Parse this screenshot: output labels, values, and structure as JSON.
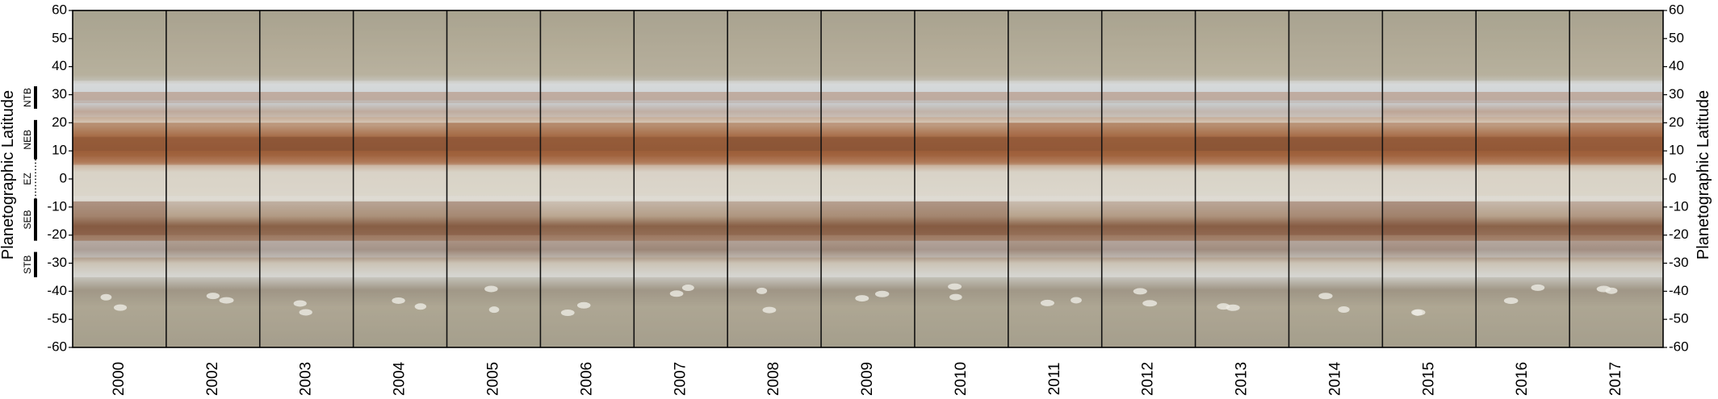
{
  "left_axis_title": "Planetographic Latitude",
  "right_axis_title": "Planetographic Latitude",
  "latitude_range": [
    -60,
    60
  ],
  "latitude_ticks": [
    60,
    50,
    40,
    30,
    20,
    10,
    0,
    -10,
    -20,
    -30,
    -40,
    -50,
    -60
  ],
  "years": [
    "2000",
    "2002",
    "2003",
    "2004",
    "2005",
    "2006",
    "2007",
    "2008",
    "2009",
    "2010",
    "2011",
    "2012",
    "2013",
    "2014",
    "2015",
    "2016",
    "2017"
  ],
  "belt_labels": [
    {
      "label": "NTB",
      "lat_from": 33,
      "lat_to": 25,
      "marker": "bar"
    },
    {
      "label": "NEB",
      "lat_from": 21,
      "lat_to": 7,
      "marker": "bar"
    },
    {
      "label": "EZ",
      "lat_from": 7,
      "lat_to": -7,
      "marker": "dotted"
    },
    {
      "label": "SEB",
      "lat_from": -7,
      "lat_to": -22,
      "marker": "bar"
    },
    {
      "label": "STB",
      "lat_from": -26,
      "lat_to": -35,
      "marker": "bar"
    }
  ],
  "colors": {
    "frame": "#000000",
    "separator": "#111111",
    "zone_light": "#d9d2c4",
    "belt_brown": "#a0623c",
    "belt_dark": "#7b4a32",
    "polar_gray": "#a8a392",
    "zone_blue": "#c9d1d6"
  }
}
